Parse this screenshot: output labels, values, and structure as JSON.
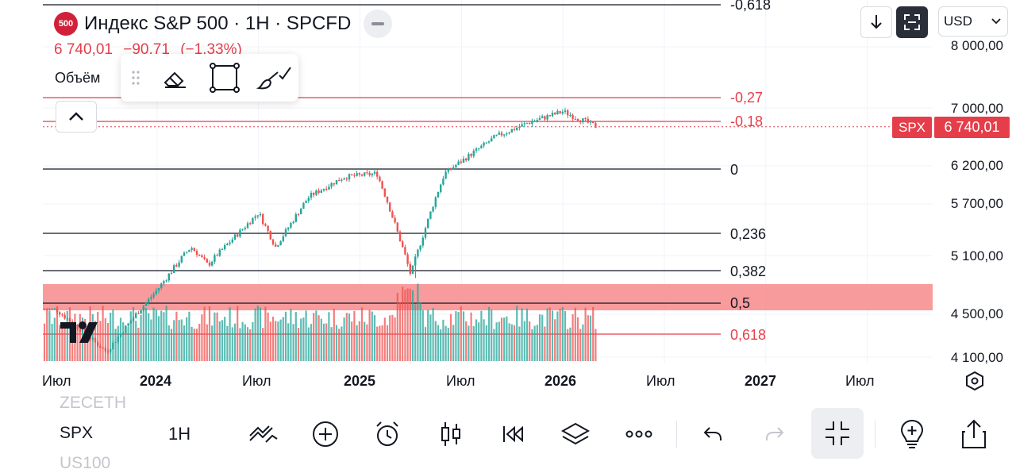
{
  "header": {
    "symbol_badge": "500",
    "title": "Индекс S&P 500 · 1H · SPCFD",
    "price": "6 740,01",
    "change": "−90,71",
    "change_pct": "(−1,33%)",
    "volume_label": "Объём"
  },
  "top_right": {
    "currency": "USD",
    "download_icon": "arrow-down-icon",
    "fit_icon": "fit-screen-icon"
  },
  "drawing_toolbar": {
    "items": [
      "drag-handle-icon",
      "eraser-icon",
      "rectangle-icon",
      "brush-icon"
    ]
  },
  "colors": {
    "up": "#26a69a",
    "down": "#ef5350",
    "fib_negative": "#e53e4a",
    "fib_zone": "#f7898b",
    "badge": "#d1213a"
  },
  "price_axis": [
    "8 000,00",
    "7 000,00",
    "6 200,00",
    "5 700,00",
    "5 100,00",
    "4 500,00",
    "4 100,00"
  ],
  "last_price_tag": {
    "symbol": "SPX",
    "price": "6 740,01"
  },
  "fib_levels": [
    {
      "label": "-0,618",
      "color": "#131722"
    },
    {
      "label": "-0,27",
      "color": "#e53e4a"
    },
    {
      "label": "-0,18",
      "color": "#e53e4a"
    },
    {
      "label": "0",
      "color": "#131722"
    },
    {
      "label": "0,236",
      "color": "#131722"
    },
    {
      "label": "0,382",
      "color": "#131722"
    },
    {
      "label": "0,5",
      "color": "#131722"
    },
    {
      "label": "0,618",
      "color": "#e53e4a"
    }
  ],
  "time_axis": [
    {
      "label": "Июл",
      "bold": false
    },
    {
      "label": "2024",
      "bold": true
    },
    {
      "label": "Июл",
      "bold": false
    },
    {
      "label": "2025",
      "bold": true
    },
    {
      "label": "Июл",
      "bold": false
    },
    {
      "label": "2026",
      "bold": true
    },
    {
      "label": "Июл",
      "bold": false
    },
    {
      "label": "2027",
      "bold": true
    },
    {
      "label": "Июл",
      "bold": false
    }
  ],
  "chart_data": {
    "type": "candlestick",
    "symbol": "SPX",
    "interval": "1H",
    "log_scale": true,
    "ylim": [
      4050,
      8200
    ],
    "x_range": [
      "2023-07",
      "2027-09"
    ],
    "approx_closes": [
      {
        "date": "2023-07",
        "value": 4550
      },
      {
        "date": "2023-10",
        "value": 4150
      },
      {
        "date": "2024-01",
        "value": 4750
      },
      {
        "date": "2024-03",
        "value": 5200
      },
      {
        "date": "2024-04",
        "value": 5000
      },
      {
        "date": "2024-07",
        "value": 5600
      },
      {
        "date": "2024-08",
        "value": 5200
      },
      {
        "date": "2024-10",
        "value": 5800
      },
      {
        "date": "2024-12",
        "value": 6050
      },
      {
        "date": "2025-02",
        "value": 6100
      },
      {
        "date": "2025-04",
        "value": 4900
      },
      {
        "date": "2025-06",
        "value": 6100
      },
      {
        "date": "2025-09",
        "value": 6600
      },
      {
        "date": "2025-11",
        "value": 6800
      },
      {
        "date": "2026-01",
        "value": 6950
      },
      {
        "date": "2026-03",
        "value": 6740.01
      }
    ],
    "last_price": 6740.01,
    "change": -90.71,
    "change_pct": -1.33,
    "has_volume": true
  },
  "bottom_bar": {
    "tickers": [
      "ZECETH",
      "SPX",
      "US100"
    ],
    "interval": "1H",
    "icons": [
      "indicators-icon",
      "add-icon",
      "alarm-icon",
      "candles-icon",
      "replay-icon",
      "layers-icon",
      "more-icon",
      "undo-icon",
      "redo-icon",
      "exit-fullscreen-icon",
      "add-idea-icon",
      "share-icon"
    ]
  }
}
